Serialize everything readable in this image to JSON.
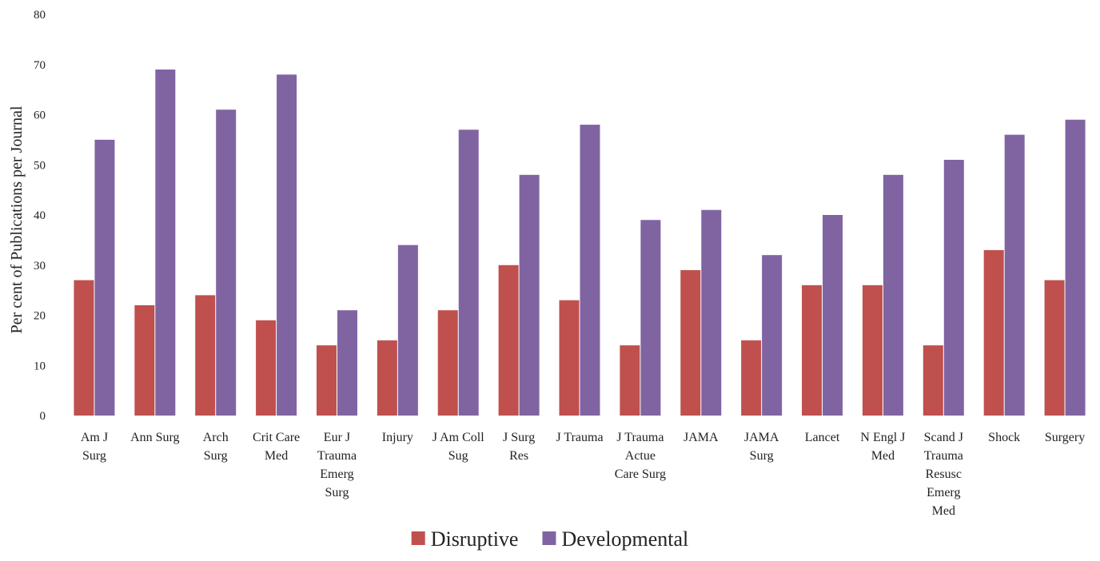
{
  "chart_data": {
    "type": "bar",
    "title": "",
    "xlabel": "",
    "ylabel": "Per cent of Publications per Journal",
    "ylim": [
      0,
      80
    ],
    "yticks": [
      0,
      10,
      20,
      30,
      40,
      50,
      60,
      70,
      80
    ],
    "grid": false,
    "legend_position": "bottom-center",
    "categories": [
      [
        "Am J",
        "Surg"
      ],
      [
        "Ann Surg"
      ],
      [
        "Arch",
        "Surg"
      ],
      [
        "Crit Care",
        "Med"
      ],
      [
        "Eur J",
        "Trauma",
        "Emerg",
        "Surg"
      ],
      [
        "Injury"
      ],
      [
        "J Am Coll",
        "Sug"
      ],
      [
        "J Surg",
        "Res"
      ],
      [
        "J Trauma"
      ],
      [
        "J Trauma",
        "Actue",
        "Care Surg"
      ],
      [
        "JAMA"
      ],
      [
        "JAMA",
        "Surg"
      ],
      [
        "Lancet"
      ],
      [
        "N Engl J",
        "Med"
      ],
      [
        "Scand J",
        "Trauma",
        "Resusc",
        "Emerg",
        "Med"
      ],
      [
        "Shock"
      ],
      [
        "Surgery"
      ]
    ],
    "series": [
      {
        "name": "Disruptive",
        "color": "#c0504d",
        "values": [
          27,
          22,
          24,
          19,
          14,
          15,
          21,
          30,
          23,
          14,
          29,
          15,
          26,
          26,
          14,
          33,
          27
        ]
      },
      {
        "name": "Developmental",
        "color": "#8064a2",
        "values": [
          55,
          69,
          61,
          68,
          21,
          34,
          57,
          48,
          58,
          39,
          41,
          32,
          40,
          48,
          51,
          56,
          59
        ]
      }
    ]
  }
}
